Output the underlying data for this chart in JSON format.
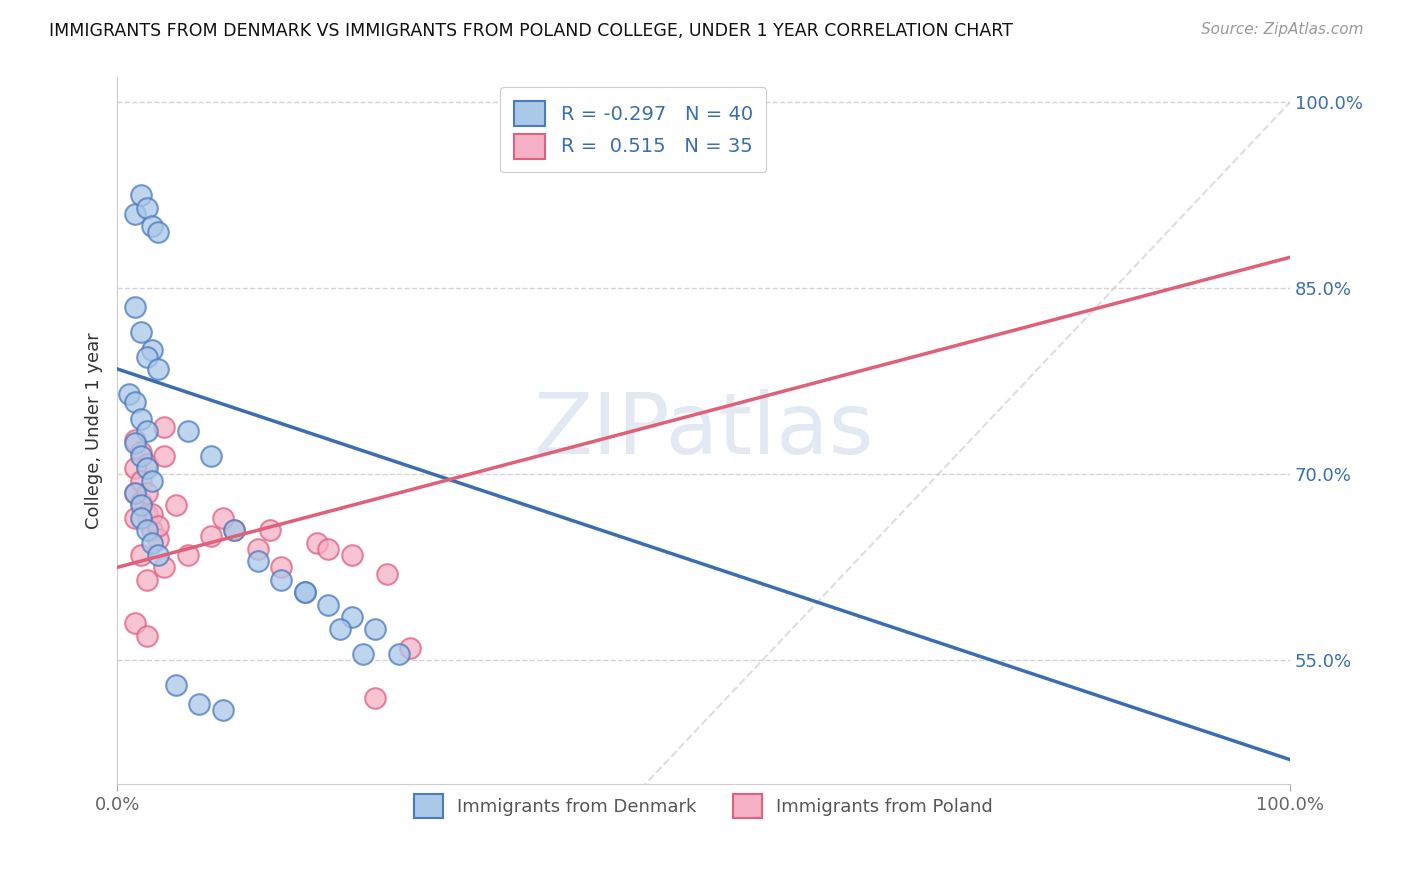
{
  "title": "IMMIGRANTS FROM DENMARK VS IMMIGRANTS FROM POLAND COLLEGE, UNDER 1 YEAR CORRELATION CHART",
  "source": "Source: ZipAtlas.com",
  "ylabel": "College, Under 1 year",
  "xlim": [
    0.0,
    1.0
  ],
  "ylim": [
    0.45,
    1.02
  ],
  "ytick_positions": [
    0.55,
    0.7,
    0.85,
    1.0
  ],
  "ytick_labels": [
    "55.0%",
    "70.0%",
    "85.0%",
    "100.0%"
  ],
  "xtick_positions": [
    0.0,
    1.0
  ],
  "xtick_labels": [
    "0.0%",
    "100.0%"
  ],
  "r1": -0.297,
  "n1": 40,
  "r2": 0.515,
  "n2": 35,
  "color_denmark_fill": "#aac8e8",
  "color_denmark_edge": "#4a7abf",
  "color_poland_fill": "#f5b0c5",
  "color_poland_edge": "#e06080",
  "color_denmark_line": "#3a6fad",
  "color_poland_line": "#e0607a",
  "color_diag": "#c8c8c8",
  "color_grid": "#d0d0d0",
  "watermark": "ZIPatlas",
  "watermark_color": "#ccd8e8",
  "dk_line_x0": 0.0,
  "dk_line_y0": 0.785,
  "dk_line_x1": 1.0,
  "dk_line_y1": 0.47,
  "pl_line_x0": 0.0,
  "pl_line_y0": 0.625,
  "pl_line_x1": 1.0,
  "pl_line_y1": 0.875,
  "dk_x": [
    0.015,
    0.02,
    0.025,
    0.03,
    0.035,
    0.015,
    0.02,
    0.03,
    0.025,
    0.035,
    0.01,
    0.015,
    0.02,
    0.025,
    0.015,
    0.02,
    0.025,
    0.03,
    0.015,
    0.02,
    0.02,
    0.025,
    0.03,
    0.035,
    0.06,
    0.08,
    0.1,
    0.12,
    0.14,
    0.16,
    0.18,
    0.2,
    0.22,
    0.24,
    0.05,
    0.07,
    0.09,
    0.16,
    0.19,
    0.21
  ],
  "dk_y": [
    0.91,
    0.925,
    0.915,
    0.9,
    0.895,
    0.835,
    0.815,
    0.8,
    0.795,
    0.785,
    0.765,
    0.758,
    0.745,
    0.735,
    0.725,
    0.715,
    0.705,
    0.695,
    0.685,
    0.675,
    0.665,
    0.655,
    0.645,
    0.635,
    0.735,
    0.715,
    0.655,
    0.63,
    0.615,
    0.605,
    0.595,
    0.585,
    0.575,
    0.555,
    0.53,
    0.515,
    0.51,
    0.605,
    0.575,
    0.555
  ],
  "pl_x": [
    0.015,
    0.02,
    0.025,
    0.03,
    0.035,
    0.04,
    0.015,
    0.02,
    0.025,
    0.03,
    0.035,
    0.04,
    0.015,
    0.02,
    0.025,
    0.015,
    0.02,
    0.025,
    0.015,
    0.025,
    0.04,
    0.06,
    0.08,
    0.1,
    0.12,
    0.14,
    0.17,
    0.2,
    0.22,
    0.25,
    0.05,
    0.09,
    0.13,
    0.18,
    0.23
  ],
  "pl_y": [
    0.685,
    0.678,
    0.668,
    0.655,
    0.648,
    0.738,
    0.728,
    0.718,
    0.708,
    0.668,
    0.658,
    0.715,
    0.705,
    0.695,
    0.685,
    0.665,
    0.635,
    0.615,
    0.58,
    0.57,
    0.625,
    0.635,
    0.65,
    0.655,
    0.64,
    0.625,
    0.645,
    0.635,
    0.52,
    0.56,
    0.675,
    0.665,
    0.655,
    0.64,
    0.62
  ]
}
